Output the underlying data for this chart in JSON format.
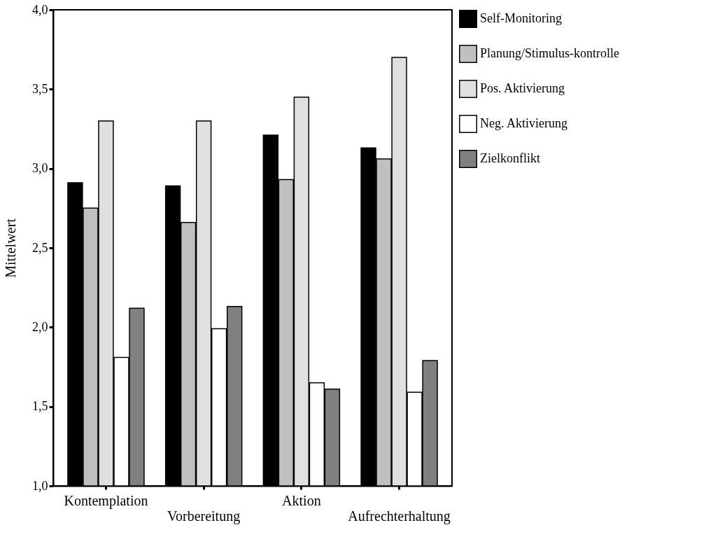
{
  "chart_data": {
    "type": "bar",
    "ylabel": "Mittelwert",
    "categories": [
      "Kontemplation",
      "Vorbereitung",
      "Aktion",
      "Aufrechterhaltung"
    ],
    "series": [
      {
        "name": "Self-Monitoring",
        "color": "#000000",
        "values": [
          2.91,
          2.89,
          3.21,
          3.13
        ]
      },
      {
        "name": "Planung/Stimulus-kontrolle",
        "color": "#c0c0c0",
        "values": [
          2.75,
          2.66,
          2.93,
          3.06
        ]
      },
      {
        "name": "Pos. Aktivierung",
        "color": "#e0e0e0",
        "values": [
          3.3,
          3.3,
          3.45,
          3.7
        ]
      },
      {
        "name": "Neg. Aktivierung",
        "color": "#ffffff",
        "values": [
          1.81,
          1.99,
          1.65,
          1.59
        ]
      },
      {
        "name": "Zielkonflikt",
        "color": "#808080",
        "values": [
          2.12,
          2.13,
          1.61,
          1.79
        ]
      }
    ],
    "ylim": [
      1.0,
      4.0
    ],
    "yticks": [
      {
        "value": 1.0,
        "label": "1,0"
      },
      {
        "value": 1.5,
        "label": "1,5"
      },
      {
        "value": 2.0,
        "label": "2,0"
      },
      {
        "value": 2.5,
        "label": "2,5"
      },
      {
        "value": 3.0,
        "label": "3,0"
      },
      {
        "value": 3.5,
        "label": "3,5"
      },
      {
        "value": 4.0,
        "label": "4,0"
      }
    ],
    "grid": false,
    "legend": "right"
  }
}
